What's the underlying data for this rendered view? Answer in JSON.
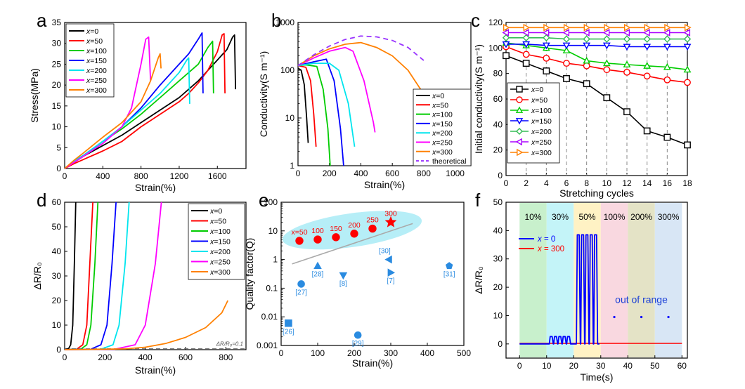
{
  "chart_data": [
    {
      "panel": "a",
      "type": "line",
      "xlabel": "Strain(%)",
      "ylabel": "Stress(MPa)",
      "xlim": [
        0,
        1900
      ],
      "ylim": [
        0,
        35
      ],
      "xticks": [
        0,
        400,
        800,
        1200,
        1600
      ],
      "yticks": [
        0,
        5,
        10,
        15,
        20,
        25,
        30,
        35
      ],
      "legend_position": "top-left",
      "series": [
        {
          "name": "x=0",
          "color": "#000000",
          "x": [
            0,
            100,
            200,
            400,
            600,
            800,
            1000,
            1200,
            1300,
            1400,
            1500,
            1600,
            1700,
            1760,
            1780,
            1790
          ],
          "y": [
            0,
            1.5,
            3,
            5.5,
            8,
            11,
            14,
            17,
            19,
            21,
            23.5,
            26,
            28.5,
            31.5,
            32,
            19
          ]
        },
        {
          "name": "x=50",
          "color": "#ff0000",
          "x": [
            0,
            100,
            200,
            400,
            600,
            800,
            1000,
            1200,
            1300,
            1400,
            1500,
            1600,
            1650,
            1670,
            1680
          ],
          "y": [
            0,
            1.2,
            2.2,
            4.2,
            6.5,
            10,
            13,
            16,
            18,
            20.5,
            23.5,
            28,
            32,
            32.3,
            18
          ]
        },
        {
          "name": "x=100",
          "color": "#00cc00",
          "x": [
            0,
            100,
            200,
            400,
            600,
            800,
            1000,
            1200,
            1300,
            1400,
            1500,
            1550,
            1560
          ],
          "y": [
            0,
            1.8,
            3.2,
            6.5,
            9.5,
            13,
            17,
            21,
            23,
            25,
            29,
            30.5,
            18
          ]
        },
        {
          "name": "x=150",
          "color": "#0000ff",
          "x": [
            0,
            100,
            200,
            400,
            600,
            800,
            1000,
            1200,
            1300,
            1400,
            1440,
            1450
          ],
          "y": [
            0,
            1.8,
            3.2,
            6.5,
            10,
            14.5,
            20,
            25,
            27.5,
            31,
            32.5,
            18
          ]
        },
        {
          "name": "x=200",
          "color": "#00e5ee",
          "x": [
            0,
            100,
            200,
            400,
            600,
            800,
            1000,
            1200,
            1280,
            1300,
            1310
          ],
          "y": [
            0,
            1.8,
            3.2,
            6.5,
            10,
            14,
            18,
            23,
            26,
            26.5,
            15.5
          ]
        },
        {
          "name": "x=250",
          "color": "#ff00ff",
          "x": [
            0,
            100,
            200,
            400,
            500,
            600,
            700,
            800,
            850,
            880,
            900
          ],
          "y": [
            0,
            1.5,
            3,
            6,
            8,
            10,
            14.5,
            25,
            31,
            31.5,
            21
          ]
        },
        {
          "name": "x=300",
          "color": "#ff8000",
          "x": [
            0,
            100,
            200,
            400,
            600,
            800,
            900,
            980,
            1000,
            1010
          ],
          "y": [
            0,
            2,
            3.8,
            7.5,
            11,
            16,
            21,
            26.5,
            27.5,
            24
          ]
        }
      ]
    },
    {
      "panel": "b",
      "type": "line",
      "xlabel": "Strain(%)",
      "ylabel": "Conductivity(S m⁻¹)",
      "xscale": "linear",
      "yscale": "log",
      "xlim": [
        0,
        1100
      ],
      "ylim": [
        1,
        1000
      ],
      "xticks": [
        0,
        200,
        400,
        600,
        800,
        1000
      ],
      "ytick_labels": [
        "1",
        "10",
        "100",
        "1000"
      ],
      "legend_position": "bottom-right",
      "series": [
        {
          "name": "x=0",
          "color": "#000000",
          "x": [
            0,
            20,
            40,
            55,
            65
          ],
          "y": [
            110,
            100,
            50,
            10,
            3
          ]
        },
        {
          "name": "x=50",
          "color": "#ff0000",
          "x": [
            0,
            50,
            80,
            100,
            115
          ],
          "y": [
            125,
            115,
            60,
            12,
            2.5
          ]
        },
        {
          "name": "x=100",
          "color": "#00cc00",
          "x": [
            0,
            50,
            120,
            160,
            190,
            205
          ],
          "y": [
            125,
            130,
            120,
            40,
            6,
            1
          ]
        },
        {
          "name": "x=150",
          "color": "#0000ff",
          "x": [
            0,
            100,
            180,
            230,
            270,
            290
          ],
          "y": [
            125,
            150,
            170,
            60,
            6,
            1
          ]
        },
        {
          "name": "x=200",
          "color": "#00e5ee",
          "x": [
            0,
            100,
            200,
            260,
            320,
            360
          ],
          "y": [
            125,
            140,
            140,
            100,
            20,
            2.5
          ]
        },
        {
          "name": "x=250",
          "color": "#ff00ff",
          "x": [
            0,
            100,
            200,
            300,
            350,
            420,
            480,
            490
          ],
          "y": [
            125,
            180,
            250,
            300,
            250,
            60,
            8,
            5
          ]
        },
        {
          "name": "x=300",
          "color": "#ff8000",
          "x": [
            0,
            100,
            200,
            300,
            400,
            500,
            600,
            700,
            780,
            800
          ],
          "y": [
            125,
            200,
            280,
            350,
            380,
            300,
            200,
            100,
            40,
            30
          ]
        },
        {
          "name": "theoretical",
          "color": "#9933ff",
          "dashed": true,
          "x": [
            0,
            100,
            200,
            300,
            400,
            500,
            600,
            700,
            800
          ],
          "y": [
            125,
            210,
            320,
            440,
            520,
            500,
            420,
            300,
            160
          ]
        }
      ]
    },
    {
      "panel": "c",
      "type": "line",
      "xlabel": "Stretching cycles",
      "ylabel": "Initial conductivity(S m⁻¹)",
      "xlim": [
        0,
        18
      ],
      "ylim": [
        0,
        120
      ],
      "xticks": [
        0,
        2,
        4,
        6,
        8,
        10,
        12,
        14,
        16,
        18
      ],
      "yticks": [
        0,
        20,
        40,
        60,
        80,
        100,
        120
      ],
      "dashed_gridlines_x": [
        2,
        4,
        6,
        8,
        10,
        12,
        14,
        16
      ],
      "legend_position": "bottom-left",
      "series": [
        {
          "name": "x=0",
          "color": "#000000",
          "marker": "square",
          "x": [
            0,
            2,
            4,
            6,
            8,
            10,
            12,
            14,
            16,
            18
          ],
          "y": [
            94,
            88,
            82,
            76,
            72,
            61,
            50,
            35,
            30,
            24
          ]
        },
        {
          "name": "x=50",
          "color": "#ff0000",
          "marker": "circle",
          "x": [
            0,
            2,
            4,
            6,
            8,
            10,
            12,
            14,
            16,
            18
          ],
          "y": [
            101,
            95,
            92,
            88,
            86,
            83,
            81,
            78,
            75,
            73
          ]
        },
        {
          "name": "x=100",
          "color": "#00cc00",
          "marker": "triangle-up",
          "x": [
            0,
            2,
            4,
            6,
            8,
            10,
            12,
            14,
            16,
            18
          ],
          "y": [
            104,
            102,
            100,
            98,
            90,
            88,
            87,
            86,
            85,
            83
          ]
        },
        {
          "name": "x=150",
          "color": "#0000ff",
          "marker": "triangle-down",
          "x": [
            0,
            2,
            4,
            6,
            8,
            10,
            12,
            14,
            16,
            18
          ],
          "y": [
            103,
            103,
            102,
            102,
            102,
            102,
            101,
            101,
            101,
            101
          ]
        },
        {
          "name": "x=200",
          "color": "#33bb55",
          "marker": "diamond",
          "x": [
            0,
            2,
            4,
            6,
            8,
            10,
            12,
            14,
            16,
            18
          ],
          "y": [
            108,
            108,
            108,
            107,
            107,
            107,
            107,
            107,
            107,
            107
          ]
        },
        {
          "name": "x=250",
          "color": "#aa00ff",
          "marker": "triangle-left",
          "x": [
            0,
            2,
            4,
            6,
            8,
            10,
            12,
            14,
            16,
            18
          ],
          "y": [
            112,
            112,
            112,
            112,
            112,
            112,
            112,
            112,
            112,
            112
          ]
        },
        {
          "name": "x=300",
          "color": "#ff8000",
          "marker": "triangle-right",
          "x": [
            0,
            2,
            4,
            6,
            8,
            10,
            12,
            14,
            16,
            18
          ],
          "y": [
            116,
            116,
            116,
            116,
            116,
            116,
            116,
            116,
            116,
            116
          ]
        }
      ]
    },
    {
      "panel": "d",
      "type": "line",
      "xlabel": "Strain(%)",
      "ylabel": "ΔR/R₀",
      "xlim": [
        0,
        900
      ],
      "ylim": [
        0,
        60
      ],
      "xticks": [
        0,
        200,
        400,
        600,
        800
      ],
      "yticks": [
        0,
        10,
        20,
        30,
        40,
        50,
        60
      ],
      "annotation": "ΔR/R₀=0.1",
      "legend_position": "top-right",
      "series": [
        {
          "name": "x=0",
          "color": "#000000",
          "x": [
            0,
            20,
            30,
            40,
            48,
            55
          ],
          "y": [
            0,
            0.5,
            2,
            10,
            35,
            60
          ]
        },
        {
          "name": "x=50",
          "color": "#ff0000",
          "x": [
            0,
            60,
            90,
            110,
            125,
            140
          ],
          "y": [
            0,
            0.2,
            2,
            10,
            35,
            60
          ]
        },
        {
          "name": "x=100",
          "color": "#00cc00",
          "x": [
            0,
            80,
            110,
            130,
            150,
            165
          ],
          "y": [
            0,
            0.2,
            2,
            10,
            35,
            60
          ]
        },
        {
          "name": "x=150",
          "color": "#0000ff",
          "x": [
            0,
            130,
            180,
            210,
            235,
            255
          ],
          "y": [
            0,
            0.2,
            2,
            10,
            35,
            60
          ]
        },
        {
          "name": "x=200",
          "color": "#00e5ee",
          "x": [
            0,
            180,
            240,
            270,
            300,
            320
          ],
          "y": [
            0,
            0.2,
            2,
            10,
            35,
            60
          ]
        },
        {
          "name": "x=250",
          "color": "#ff00ff",
          "x": [
            0,
            250,
            350,
            400,
            450,
            480
          ],
          "y": [
            0,
            0.2,
            2,
            10,
            35,
            60
          ]
        },
        {
          "name": "x=300",
          "color": "#ff8000",
          "x": [
            0,
            300,
            400,
            500,
            600,
            700,
            780,
            810
          ],
          "y": [
            0,
            0.3,
            1,
            2.5,
            5,
            9,
            15,
            20
          ]
        }
      ]
    },
    {
      "panel": "e",
      "type": "scatter",
      "xlabel": "Strain(%)",
      "ylabel": "Quality factor(Q)",
      "xscale": "linear",
      "yscale": "log",
      "xlim": [
        0,
        500
      ],
      "ylim": [
        0.001,
        100
      ],
      "xticks": [
        0,
        100,
        200,
        300,
        400,
        500
      ],
      "ytick_labels": [
        "0.001",
        "0.01",
        "0.1",
        "1",
        "10",
        "100"
      ],
      "this_work": {
        "color": "#ff0000",
        "labels": [
          "x=50",
          "100",
          "150",
          "200",
          "250",
          "300"
        ],
        "x": [
          50,
          100,
          150,
          200,
          250,
          300
        ],
        "y": [
          4.5,
          5,
          6,
          8,
          12,
          20
        ]
      },
      "trend_line": {
        "color": "#aaaaaa",
        "x": [
          30,
          360
        ],
        "y": [
          0.7,
          18
        ]
      },
      "references": [
        {
          "label": "[26]",
          "x": 20,
          "y": 0.006,
          "marker": "square"
        },
        {
          "label": "[27]",
          "x": 55,
          "y": 0.14,
          "marker": "circle"
        },
        {
          "label": "[28]",
          "x": 100,
          "y": 0.6,
          "marker": "triangle-up"
        },
        {
          "label": "[8]",
          "x": 170,
          "y": 0.28,
          "marker": "triangle-down"
        },
        {
          "label": "[29]",
          "x": 210,
          "y": 0.0023,
          "marker": "circle"
        },
        {
          "label": "[30]",
          "x": 295,
          "y": 1.0,
          "marker": "triangle-left"
        },
        {
          "label": "[7]",
          "x": 300,
          "y": 0.35,
          "marker": "triangle-right"
        },
        {
          "label": "[31]",
          "x": 460,
          "y": 0.6,
          "marker": "pentagon"
        }
      ]
    },
    {
      "panel": "f",
      "type": "line",
      "xlabel": "Time(s)",
      "ylabel": "ΔR/R₀",
      "xlim": [
        -5,
        62
      ],
      "ylim": [
        -5,
        50
      ],
      "xticks": [
        0,
        10,
        20,
        30,
        40,
        50,
        60
      ],
      "yticks": [
        0,
        10,
        20,
        30,
        40,
        50
      ],
      "bands": [
        {
          "label": "10%",
          "x0": 0,
          "x1": 10,
          "color": "#c8f0cc"
        },
        {
          "label": "30%",
          "x0": 10,
          "x1": 20,
          "color": "#c4f4f8"
        },
        {
          "label": "50%",
          "x0": 20,
          "x1": 30,
          "color": "#fff2c4"
        },
        {
          "label": "100%",
          "x0": 30,
          "x1": 40,
          "color": "#f9d8e0"
        },
        {
          "label": "200%",
          "x0": 40,
          "x1": 50,
          "color": "#e4e3c6"
        },
        {
          "label": "300%",
          "x0": 50,
          "x1": 60,
          "color": "#d8e6f5"
        }
      ],
      "annotation": "out of range",
      "legend_position": "top-left",
      "series": [
        {
          "name": "x = 0",
          "color": "#0000ff",
          "spikes": [
            {
              "start": 11,
              "end": 19,
              "count": 5,
              "height": 2.6
            },
            {
              "start": 21,
              "end": 29,
              "count": 5,
              "height": 38.5
            }
          ],
          "dots_x": [
            35,
            45,
            55
          ],
          "dots_y": 9.5
        },
        {
          "name": "x = 300",
          "color": "#ff0000",
          "flat": 0.2
        }
      ]
    }
  ],
  "panel_labels": [
    "a",
    "b",
    "c",
    "d",
    "e",
    "f"
  ]
}
